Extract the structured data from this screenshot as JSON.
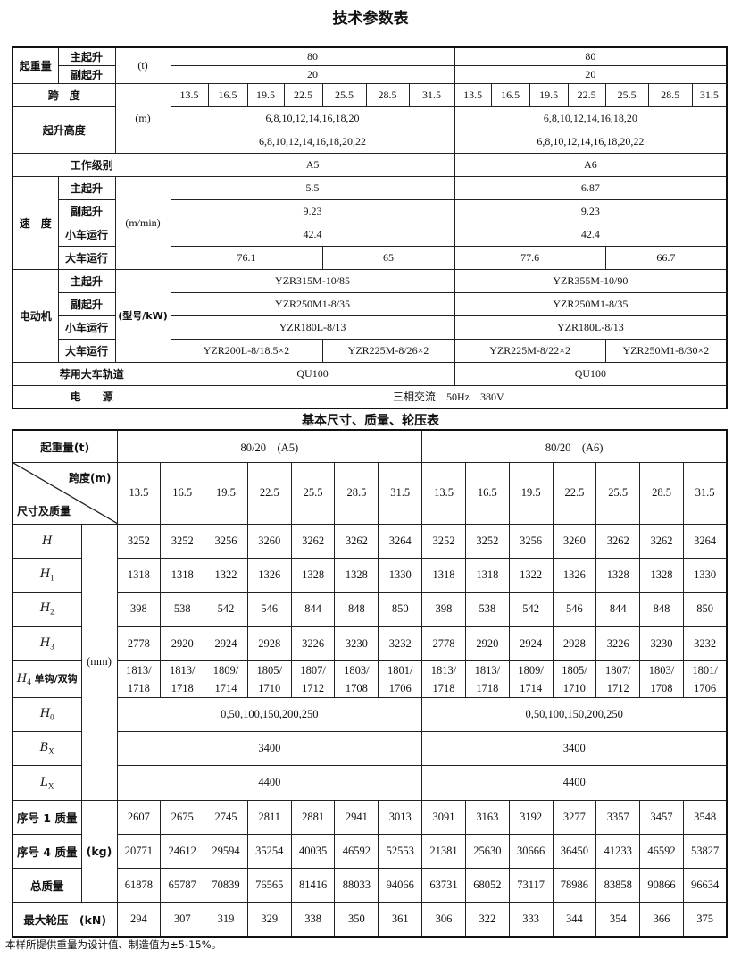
{
  "title": "技术参数表",
  "spec": {
    "lift_capacity": {
      "label": "起重量",
      "main": "主起升",
      "aux": "副起升",
      "unit": "(t)",
      "a5_main": "80",
      "a6_main": "80",
      "a5_aux": "20",
      "a6_aux": "20"
    },
    "span": {
      "label": "跨　度",
      "unit": "(m)",
      "a5": [
        "13.5",
        "16.5",
        "19.5",
        "22.5",
        "25.5",
        "28.5",
        "31.5"
      ],
      "a6": [
        "13.5",
        "16.5",
        "19.5",
        "22.5",
        "25.5",
        "28.5",
        "31.5"
      ]
    },
    "lift_height": {
      "label": "起升高度",
      "a5_main": "6,8,10,12,14,16,18,20",
      "a6_main": "6,8,10,12,14,16,18,20",
      "a5_aux": "6,8,10,12,14,16,18,20,22",
      "a6_aux": "6,8,10,12,14,16,18,20,22"
    },
    "duty": {
      "label": "工作级别",
      "a5": "A5",
      "a6": "A6"
    },
    "speed": {
      "label": "速　度",
      "unit": "(m/min)",
      "main": "主起升",
      "aux": "副起升",
      "trolley": "小车运行",
      "crane": "大车运行",
      "a5_main": "5.5",
      "a6_main": "6.87",
      "a5_aux": "9.23",
      "a6_aux": "9.23",
      "a5_trolley": "42.4",
      "a6_trolley": "42.4",
      "a5_crane": [
        "76.1",
        "65"
      ],
      "a6_crane": [
        "77.6",
        "66.7"
      ]
    },
    "motor": {
      "label": "电动机",
      "unit": "(型号/kW)",
      "main": "主起升",
      "aux": "副起升",
      "trolley": "小车运行",
      "crane": "大车运行",
      "a5_main": "YZR315M-10/85",
      "a6_main": "YZR355M-10/90",
      "a5_aux": "YZR250M1-8/35",
      "a6_aux": "YZR250M1-8/35",
      "a5_trolley": "YZR180L-8/13",
      "a6_trolley": "YZR180L-8/13",
      "a5_crane": [
        "YZR200L-8/18.5×2",
        "YZR225M-8/26×2"
      ],
      "a6_crane": [
        "YZR225M-8/22×2",
        "YZR250M1-8/30×2"
      ]
    },
    "rail": {
      "label": "荐用大车轨道",
      "a5": "QU100",
      "a6": "QU100"
    },
    "power": {
      "label": "电　　源",
      "value": "三相交流　50Hz　380V"
    }
  },
  "dims_title": "基本尺寸、质量、轮压表",
  "dims": {
    "capacity_label": "起重量(t)",
    "group_a5": "80/20　(A5)",
    "group_a6": "80/20　(A6)",
    "diag_top": "跨度(m)",
    "diag_bottom": "尺寸及质量",
    "spans": [
      "13.5",
      "16.5",
      "19.5",
      "22.5",
      "25.5",
      "28.5",
      "31.5",
      "13.5",
      "16.5",
      "19.5",
      "22.5",
      "25.5",
      "28.5",
      "31.5"
    ],
    "unit_mm": "(mm)",
    "unit_kg": "(kg)",
    "rows": [
      {
        "sym": "H",
        "sub": "",
        "values": [
          "3252",
          "3252",
          "3256",
          "3260",
          "3262",
          "3262",
          "3264",
          "3252",
          "3252",
          "3256",
          "3260",
          "3262",
          "3262",
          "3264"
        ]
      },
      {
        "sym": "H",
        "sub": "1",
        "values": [
          "1318",
          "1318",
          "1322",
          "1326",
          "1328",
          "1328",
          "1330",
          "1318",
          "1318",
          "1322",
          "1326",
          "1328",
          "1328",
          "1330"
        ]
      },
      {
        "sym": "H",
        "sub": "2",
        "values": [
          "398",
          "538",
          "542",
          "546",
          "844",
          "848",
          "850",
          "398",
          "538",
          "542",
          "546",
          "844",
          "848",
          "850"
        ]
      },
      {
        "sym": "H",
        "sub": "3",
        "values": [
          "2778",
          "2920",
          "2924",
          "2928",
          "3226",
          "3230",
          "3232",
          "2778",
          "2920",
          "2924",
          "2928",
          "3226",
          "3230",
          "3232"
        ]
      },
      {
        "sym": "H",
        "sub": "4",
        "suffix": " 单钩/双钩",
        "values": [
          "1813/ 1718",
          "1813/ 1718",
          "1809/ 1714",
          "1805/ 1710",
          "1807/ 1712",
          "1803/ 1708",
          "1801/ 1706",
          "1813/ 1718",
          "1813/ 1718",
          "1809/ 1714",
          "1805/ 1710",
          "1807/ 1712",
          "1803/ 1708",
          "1801/ 1706"
        ]
      },
      {
        "sym": "H",
        "sub": "0",
        "a5": "0,50,100,150,200,250",
        "a6": "0,50,100,150,200,250"
      },
      {
        "sym": "B",
        "sub": "X",
        "a5": "3400",
        "a6": "3400"
      },
      {
        "sym": "L",
        "sub": "X",
        "a5": "4400",
        "a6": "4400"
      }
    ],
    "mass_rows": [
      {
        "label": "序号 1 质量",
        "values": [
          "2607",
          "2675",
          "2745",
          "2811",
          "2881",
          "2941",
          "3013",
          "3091",
          "3163",
          "3192",
          "3277",
          "3357",
          "3457",
          "3548"
        ]
      },
      {
        "label": "序号 4 质量",
        "values": [
          "20771",
          "24612",
          "29594",
          "35254",
          "40035",
          "46592",
          "52553",
          "21381",
          "25630",
          "30666",
          "36450",
          "41233",
          "46592",
          "53827"
        ]
      },
      {
        "label": "总质量",
        "values": [
          "61878",
          "65787",
          "70839",
          "76565",
          "81416",
          "88033",
          "94066",
          "63731",
          "68052",
          "73117",
          "78986",
          "83858",
          "90866",
          "96634"
        ]
      }
    ],
    "wheel_load": {
      "label": "最大轮压　(kN)",
      "values": [
        "294",
        "307",
        "319",
        "329",
        "338",
        "350",
        "361",
        "306",
        "322",
        "333",
        "344",
        "354",
        "366",
        "375"
      ]
    }
  },
  "footnote": "本样所提供重量为设计值、制造值为±5-15%。"
}
